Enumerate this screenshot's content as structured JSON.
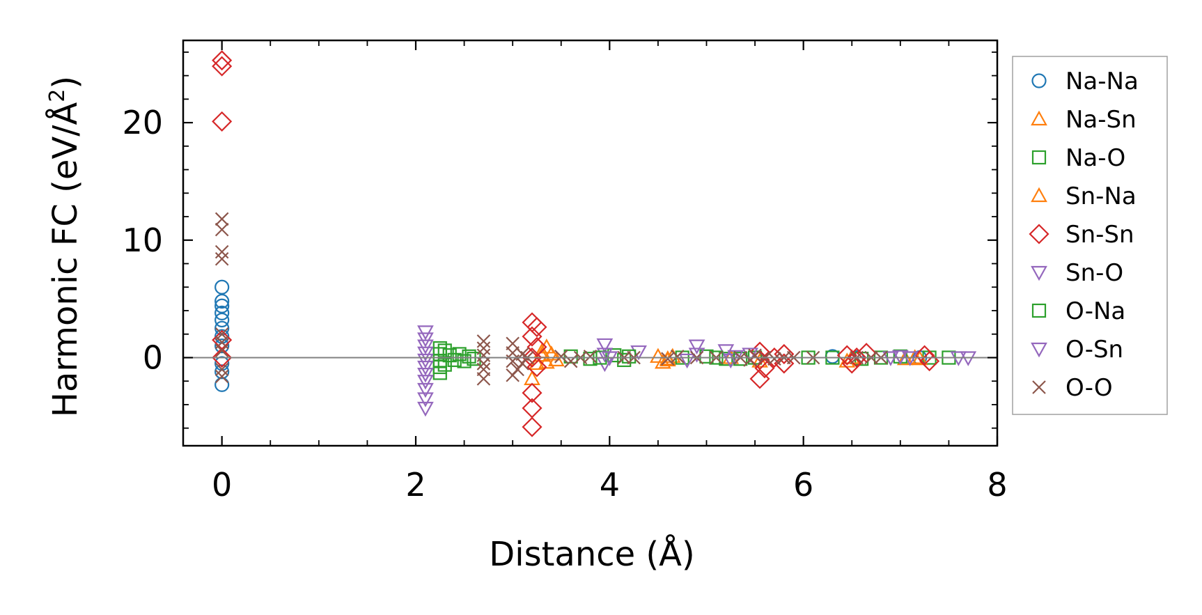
{
  "chart_data": {
    "type": "scatter",
    "title": "",
    "xlabel": "Distance (Å)",
    "ylabel_main": "Harmonic FC (eV/Å",
    "ylabel_sup": "2",
    "ylabel_tail": ")",
    "xlim": [
      -0.4,
      8.0
    ],
    "ylim": [
      -7.5,
      27.0
    ],
    "xticks": [
      0,
      2,
      4,
      6,
      8
    ],
    "xtick_labels": [
      "0",
      "2",
      "4",
      "6",
      "8"
    ],
    "yticks": [
      0,
      10,
      20
    ],
    "ytick_labels": [
      "0",
      "10",
      "20"
    ],
    "zero_line": true,
    "grid": false,
    "legend_position": "right, outside plot",
    "series": [
      {
        "name": "Na-Na",
        "marker": "circle",
        "color": "#1f77b4",
        "points": [
          [
            0,
            6.0
          ],
          [
            0,
            4.8
          ],
          [
            0,
            4.4
          ],
          [
            0,
            3.8
          ],
          [
            0,
            3.2
          ],
          [
            0,
            2.5
          ],
          [
            0,
            1.8
          ],
          [
            0,
            1.0
          ],
          [
            0,
            -0.5
          ],
          [
            0,
            -1.2
          ],
          [
            0,
            -2.3
          ],
          [
            6.3,
            0.1
          ],
          [
            6.55,
            0.0
          ],
          [
            7.2,
            0.0
          ]
        ]
      },
      {
        "name": "Na-Sn",
        "marker": "triangle-up",
        "color": "#ff7f0e",
        "points": [
          [
            3.2,
            -1.8
          ],
          [
            3.25,
            -0.5
          ],
          [
            3.3,
            0.5
          ],
          [
            3.35,
            0.9
          ],
          [
            3.4,
            0.3
          ],
          [
            3.45,
            -0.2
          ],
          [
            4.55,
            -0.4
          ],
          [
            4.6,
            -0.2
          ],
          [
            4.65,
            0.1
          ],
          [
            5.55,
            -0.3
          ],
          [
            6.45,
            -0.3
          ],
          [
            7.05,
            -0.1
          ],
          [
            7.15,
            0.0
          ]
        ]
      },
      {
        "name": "Na-O",
        "marker": "square",
        "color": "#2ca02c",
        "points": [
          [
            2.25,
            0.8
          ],
          [
            2.25,
            0.3
          ],
          [
            2.25,
            -0.3
          ],
          [
            2.25,
            -0.8
          ],
          [
            2.25,
            -1.3
          ],
          [
            2.3,
            0.6
          ],
          [
            2.3,
            -0.6
          ],
          [
            2.35,
            0.2
          ],
          [
            2.4,
            -0.2
          ],
          [
            2.45,
            0.3
          ],
          [
            2.5,
            -0.3
          ],
          [
            2.55,
            0.1
          ],
          [
            2.6,
            -0.1
          ],
          [
            3.6,
            0.1
          ],
          [
            3.8,
            -0.1
          ],
          [
            4.05,
            0.2
          ],
          [
            4.15,
            -0.2
          ],
          [
            4.75,
            0.0
          ],
          [
            5.0,
            0.1
          ],
          [
            5.2,
            -0.1
          ],
          [
            5.5,
            0.0
          ],
          [
            6.3,
            0.0
          ],
          [
            6.6,
            -0.1
          ],
          [
            6.8,
            0.0
          ],
          [
            7.0,
            0.1
          ],
          [
            7.3,
            0.0
          ],
          [
            7.5,
            0.0
          ]
        ]
      },
      {
        "name": "Sn-Na",
        "marker": "triangle-up",
        "color": "#ff7f0e",
        "points": [
          [
            3.3,
            0.2
          ],
          [
            3.35,
            -0.4
          ],
          [
            4.5,
            0.1
          ],
          [
            4.6,
            -0.1
          ],
          [
            5.25,
            0.0
          ],
          [
            6.5,
            0.0
          ],
          [
            7.2,
            -0.1
          ]
        ]
      },
      {
        "name": "Sn-Sn",
        "marker": "diamond",
        "color": "#d62728",
        "points": [
          [
            0,
            25.3
          ],
          [
            0,
            24.8
          ],
          [
            0,
            20.1
          ],
          [
            0,
            1.5
          ],
          [
            0,
            0.0
          ],
          [
            3.2,
            3.0
          ],
          [
            3.25,
            2.6
          ],
          [
            3.2,
            1.8
          ],
          [
            3.25,
            0.9
          ],
          [
            3.2,
            0.0
          ],
          [
            3.25,
            -0.8
          ],
          [
            3.2,
            -3.0
          ],
          [
            3.2,
            -4.3
          ],
          [
            3.2,
            -5.9
          ],
          [
            5.55,
            0.5
          ],
          [
            5.55,
            -0.2
          ],
          [
            5.6,
            -0.9
          ],
          [
            5.55,
            -1.8
          ],
          [
            5.7,
            0.0
          ],
          [
            5.8,
            0.3
          ],
          [
            5.8,
            -0.5
          ],
          [
            6.45,
            0.2
          ],
          [
            6.5,
            -0.5
          ],
          [
            6.55,
            0.0
          ],
          [
            6.65,
            0.4
          ],
          [
            7.25,
            0.2
          ],
          [
            7.3,
            -0.3
          ]
        ]
      },
      {
        "name": "Sn-O",
        "marker": "triangle-down",
        "color": "#9467bd",
        "points": [
          [
            2.1,
            2.2
          ],
          [
            2.1,
            1.6
          ],
          [
            2.1,
            1.0
          ],
          [
            2.1,
            0.4
          ],
          [
            2.1,
            -0.2
          ],
          [
            2.1,
            -0.8
          ],
          [
            2.1,
            -1.4
          ],
          [
            2.1,
            -2.0
          ],
          [
            2.1,
            -2.7
          ],
          [
            2.1,
            -3.5
          ],
          [
            2.1,
            -4.3
          ],
          [
            3.95,
            1.1
          ],
          [
            3.95,
            0.3
          ],
          [
            3.95,
            -0.5
          ],
          [
            4.3,
            0.5
          ],
          [
            4.9,
            1.0
          ],
          [
            4.9,
            0.3
          ],
          [
            5.2,
            0.6
          ],
          [
            5.25,
            -0.2
          ],
          [
            5.45,
            0.3
          ],
          [
            6.9,
            0.0
          ],
          [
            7.0,
            0.1
          ],
          [
            7.6,
            0.0
          ],
          [
            7.7,
            0.0
          ]
        ]
      },
      {
        "name": "O-Na",
        "marker": "square",
        "color": "#2ca02c",
        "points": [
          [
            3.9,
            0.0
          ],
          [
            4.2,
            0.1
          ],
          [
            5.1,
            0.0
          ],
          [
            5.35,
            -0.1
          ],
          [
            6.05,
            0.0
          ]
        ]
      },
      {
        "name": "O-Sn",
        "marker": "triangle-down",
        "color": "#9467bd",
        "points": [
          [
            4.0,
            0.0
          ],
          [
            4.8,
            -0.2
          ],
          [
            5.3,
            0.1
          ],
          [
            7.1,
            0.0
          ]
        ]
      },
      {
        "name": "O-O",
        "marker": "x",
        "color": "#8c564b",
        "points": [
          [
            0,
            11.8
          ],
          [
            0,
            10.9
          ],
          [
            0,
            9.0
          ],
          [
            0,
            8.4
          ],
          [
            0,
            2.0
          ],
          [
            0,
            1.3
          ],
          [
            0,
            0.6
          ],
          [
            0,
            -1.0
          ],
          [
            0,
            -1.6
          ],
          [
            2.7,
            1.4
          ],
          [
            2.7,
            0.8
          ],
          [
            2.7,
            0.2
          ],
          [
            2.7,
            -0.5
          ],
          [
            2.7,
            -1.0
          ],
          [
            2.7,
            -1.8
          ],
          [
            3.0,
            1.2
          ],
          [
            3.0,
            0.4
          ],
          [
            3.0,
            -0.3
          ],
          [
            3.05,
            -1.0
          ],
          [
            3.0,
            -1.5
          ],
          [
            3.1,
            0.3
          ],
          [
            3.1,
            -0.5
          ],
          [
            3.15,
            0.0
          ],
          [
            3.5,
            0.1
          ],
          [
            3.6,
            -0.3
          ],
          [
            3.7,
            0.0
          ],
          [
            3.8,
            0.1
          ],
          [
            4.15,
            0.0
          ],
          [
            4.25,
            0.0
          ],
          [
            4.6,
            -0.1
          ],
          [
            4.7,
            0.1
          ],
          [
            4.9,
            0.0
          ],
          [
            5.1,
            0.0
          ],
          [
            5.35,
            0.0
          ],
          [
            5.45,
            -0.2
          ],
          [
            5.5,
            0.2
          ],
          [
            5.6,
            0.0
          ],
          [
            5.7,
            -0.1
          ],
          [
            5.8,
            0.0
          ],
          [
            5.9,
            0.0
          ],
          [
            6.1,
            0.0
          ],
          [
            6.55,
            0.0
          ],
          [
            6.7,
            0.0
          ],
          [
            6.8,
            0.0
          ]
        ]
      }
    ]
  },
  "colors": {
    "axis": "#000000",
    "zero_line": "#808080",
    "legend_border": "#a0a0a0"
  }
}
